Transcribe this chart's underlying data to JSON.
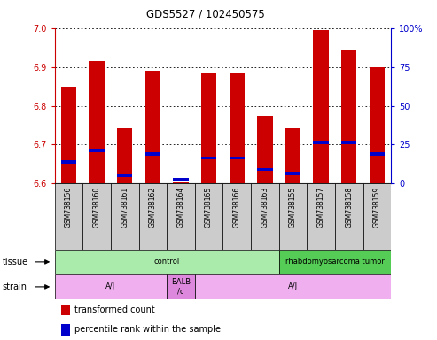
{
  "title": "GDS5527 / 102450575",
  "samples": [
    "GSM738156",
    "GSM738160",
    "GSM738161",
    "GSM738162",
    "GSM738164",
    "GSM738165",
    "GSM738166",
    "GSM738163",
    "GSM738155",
    "GSM738157",
    "GSM738158",
    "GSM738159"
  ],
  "transformed_counts": [
    6.85,
    6.915,
    6.745,
    6.89,
    6.605,
    6.885,
    6.885,
    6.775,
    6.745,
    6.995,
    6.945,
    6.9
  ],
  "percentile_rank_values": [
    6.655,
    6.685,
    6.62,
    6.675,
    6.61,
    6.665,
    6.665,
    6.635,
    6.625,
    6.705,
    6.705,
    6.675
  ],
  "ymin": 6.6,
  "ymax": 7.0,
  "yticks": [
    6.6,
    6.7,
    6.8,
    6.9,
    7.0
  ],
  "y2ticks_vals": [
    0,
    25,
    50,
    75,
    100
  ],
  "y2ticks_labels": [
    "0",
    "25",
    "50",
    "75",
    "100%"
  ],
  "bar_color": "#cc0000",
  "percentile_color": "#0000cc",
  "tissue_groups": [
    {
      "label": "control",
      "start": 0,
      "end": 8,
      "color": "#aaeaaa"
    },
    {
      "label": "rhabdomyosarcoma tumor",
      "start": 8,
      "end": 12,
      "color": "#55cc55"
    }
  ],
  "strain_groups": [
    {
      "label": "A/J",
      "start": 0,
      "end": 4,
      "color": "#f0b0f0"
    },
    {
      "label": "BALB\n/c",
      "start": 4,
      "end": 5,
      "color": "#dd88dd"
    },
    {
      "label": "A/J",
      "start": 5,
      "end": 12,
      "color": "#f0b0f0"
    }
  ],
  "legend_red": "transformed count",
  "legend_blue": "percentile rank within the sample",
  "bar_width": 0.55,
  "tick_color_left": "#cc0000",
  "tick_color_right": "#0000cc",
  "sample_label_bg": "#cccccc",
  "grid_color": "#333333"
}
